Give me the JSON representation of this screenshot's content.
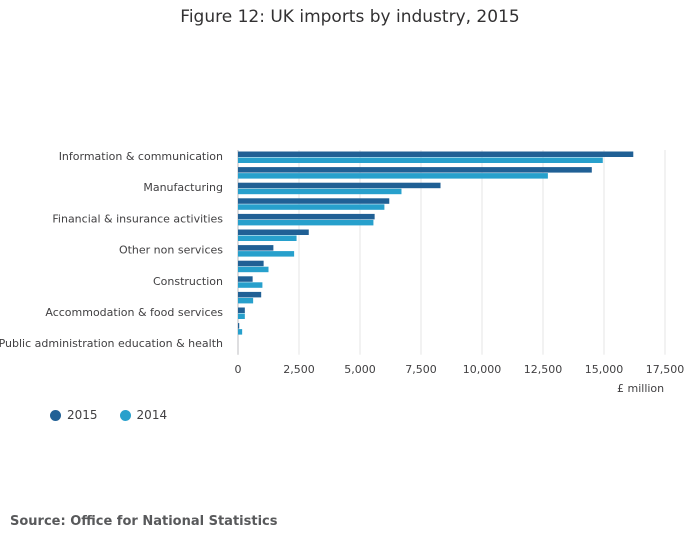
{
  "title": "Figure 12: UK imports by industry, 2015",
  "unit_label": "£ million",
  "source": "Source: Office for National Statistics",
  "chart_data": {
    "type": "bar",
    "orientation": "horizontal",
    "title": "Figure 12: UK imports by industry, 2015",
    "xlabel": "£ million",
    "ylabel": "",
    "categories": [
      "Information & communication",
      "",
      "Manufacturing",
      "",
      "Financial & insurance activities",
      "",
      "Other non services",
      "",
      "Construction",
      "",
      "Accommodation & food services",
      "",
      "Public administration education & health"
    ],
    "series": [
      {
        "name": "2015",
        "color": "#206095",
        "values": [
          16200,
          14500,
          8300,
          6200,
          5600,
          2900,
          1450,
          1050,
          600,
          950,
          280,
          50,
          0
        ]
      },
      {
        "name": "2014",
        "color": "#27a0cc",
        "values": [
          14950,
          12700,
          6700,
          6000,
          5550,
          2400,
          2300,
          1250,
          1000,
          620,
          280,
          170,
          0
        ]
      }
    ],
    "xlim": [
      0,
      17500
    ],
    "xticks": [
      0,
      2500,
      5000,
      7500,
      10000,
      12500,
      15000,
      17500
    ],
    "xtick_labels": [
      "0",
      "2,500",
      "5,000",
      "7,500",
      "10,000",
      "12,500",
      "15,000",
      "17,500"
    ],
    "grid": true,
    "legend_position": "bottom-left"
  }
}
